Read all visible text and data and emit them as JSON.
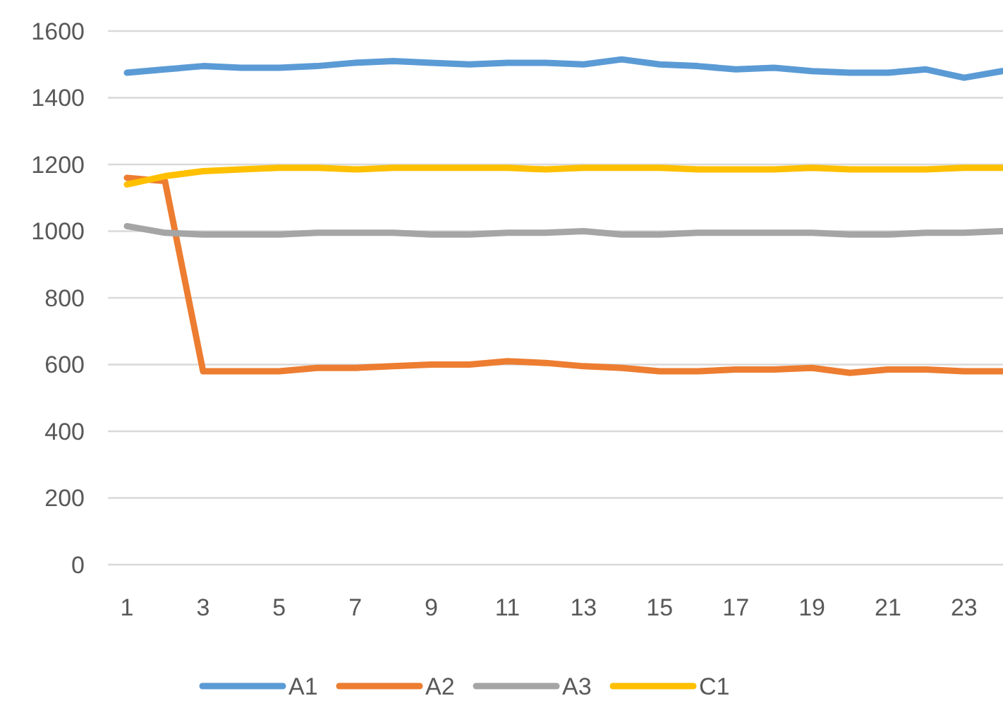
{
  "chart_data": {
    "type": "line",
    "x": [
      1,
      2,
      3,
      4,
      5,
      6,
      7,
      8,
      9,
      10,
      11,
      12,
      13,
      14,
      15,
      16,
      17,
      18,
      19,
      20,
      21,
      22,
      23,
      24
    ],
    "xlim": [
      0.5,
      24
    ],
    "xticks": [
      1,
      3,
      5,
      7,
      9,
      11,
      13,
      15,
      17,
      19,
      21,
      23
    ],
    "ylim": [
      0,
      1600
    ],
    "yticks": [
      0,
      200,
      400,
      600,
      800,
      1000,
      1200,
      1400,
      1600
    ],
    "grid": "y",
    "legend": "bottom",
    "series": [
      {
        "name": "A1",
        "color": "#5b9bd5",
        "values": [
          1475,
          1485,
          1495,
          1490,
          1490,
          1495,
          1505,
          1510,
          1505,
          1500,
          1505,
          1505,
          1500,
          1515,
          1500,
          1495,
          1485,
          1490,
          1480,
          1475,
          1475,
          1485,
          1460,
          1480
        ]
      },
      {
        "name": "A2",
        "color": "#ed7d31",
        "values": [
          1160,
          1150,
          580,
          580,
          580,
          590,
          590,
          595,
          600,
          600,
          610,
          605,
          595,
          590,
          580,
          580,
          585,
          585,
          590,
          575,
          585,
          585,
          580,
          580
        ]
      },
      {
        "name": "A3",
        "color": "#a5a5a5",
        "values": [
          1015,
          995,
          990,
          990,
          990,
          995,
          995,
          995,
          990,
          990,
          995,
          995,
          1000,
          990,
          990,
          995,
          995,
          995,
          995,
          990,
          990,
          995,
          995,
          1000
        ]
      },
      {
        "name": "C1",
        "color": "#ffc000",
        "values": [
          1140,
          1165,
          1180,
          1185,
          1190,
          1190,
          1185,
          1190,
          1190,
          1190,
          1190,
          1185,
          1190,
          1190,
          1190,
          1185,
          1185,
          1185,
          1190,
          1185,
          1185,
          1185,
          1190,
          1190
        ]
      }
    ]
  }
}
